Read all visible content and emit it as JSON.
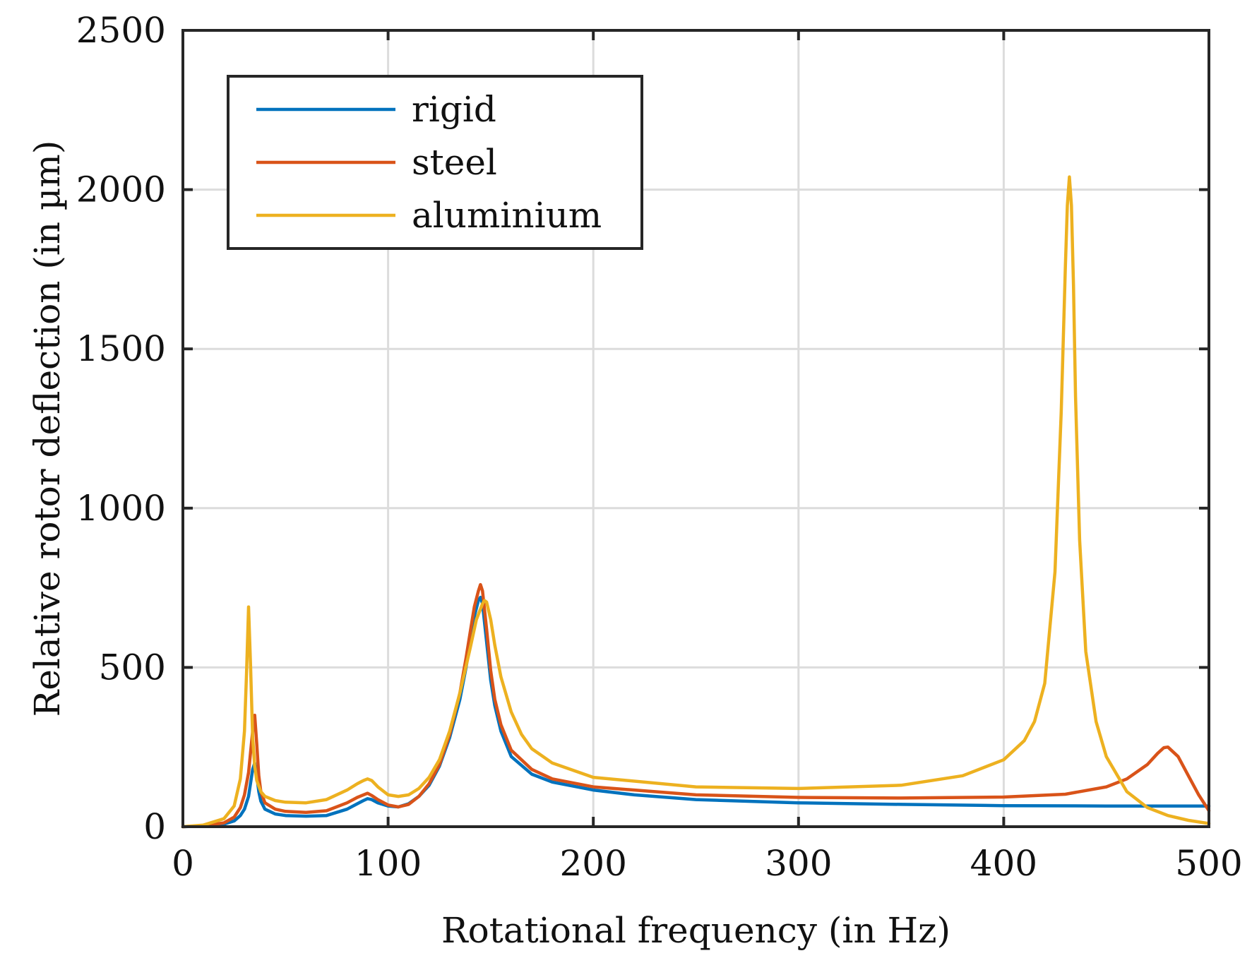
{
  "chart_data": {
    "type": "line",
    "title": "",
    "xlabel": "Rotational frequency (in Hz)",
    "ylabel": "Relative rotor deflection (in µm)",
    "xlim": [
      0,
      500
    ],
    "ylim": [
      0,
      2500
    ],
    "xticks": [
      0,
      100,
      200,
      300,
      400,
      500
    ],
    "yticks": [
      0,
      500,
      1000,
      1500,
      2000,
      2500
    ],
    "xtick_labels": [
      "0",
      "100",
      "200",
      "300",
      "400",
      "500"
    ],
    "ytick_labels": [
      "0",
      "500",
      "1000",
      "1500",
      "2000",
      "2500"
    ],
    "grid": true,
    "legend_position": "top-left",
    "series": [
      {
        "name": "rigid",
        "color": "#0072BD",
        "x": [
          0,
          10,
          20,
          25,
          28,
          30,
          32,
          34,
          35,
          36,
          37,
          38,
          40,
          45,
          50,
          60,
          70,
          80,
          85,
          88,
          90,
          92,
          95,
          100,
          105,
          110,
          115,
          120,
          125,
          130,
          135,
          138,
          140,
          142,
          144,
          145,
          146,
          148,
          150,
          152,
          155,
          160,
          170,
          180,
          200,
          220,
          250,
          300,
          350,
          400,
          450,
          500
        ],
        "y": [
          0,
          2,
          8,
          18,
          35,
          55,
          95,
          180,
          200,
          160,
          110,
          80,
          55,
          40,
          35,
          33,
          35,
          55,
          72,
          82,
          88,
          85,
          75,
          65,
          62,
          72,
          95,
          130,
          190,
          280,
          400,
          500,
          580,
          660,
          710,
          720,
          700,
          580,
          460,
          380,
          300,
          220,
          165,
          140,
          115,
          100,
          85,
          75,
          70,
          66,
          65,
          65
        ]
      },
      {
        "name": "steel",
        "color": "#D95319",
        "x": [
          0,
          10,
          20,
          25,
          28,
          30,
          32,
          34,
          35,
          36,
          37,
          38,
          40,
          45,
          50,
          60,
          70,
          80,
          85,
          88,
          90,
          92,
          95,
          100,
          105,
          110,
          115,
          120,
          125,
          130,
          135,
          138,
          140,
          142,
          144,
          145,
          146,
          148,
          150,
          152,
          155,
          160,
          170,
          180,
          200,
          250,
          300,
          350,
          400,
          430,
          450,
          460,
          470,
          475,
          478,
          480,
          485,
          490,
          495,
          500
        ],
        "y": [
          0,
          3,
          12,
          30,
          60,
          100,
          170,
          300,
          350,
          260,
          160,
          110,
          75,
          55,
          48,
          45,
          50,
          75,
          92,
          100,
          105,
          98,
          85,
          68,
          62,
          70,
          95,
          135,
          195,
          290,
          420,
          530,
          610,
          690,
          740,
          760,
          740,
          620,
          490,
          400,
          320,
          240,
          180,
          150,
          125,
          100,
          92,
          90,
          93,
          102,
          125,
          150,
          195,
          230,
          248,
          250,
          220,
          160,
          100,
          50
        ]
      },
      {
        "name": "aluminium",
        "color": "#EDB120",
        "x": [
          0,
          10,
          20,
          25,
          28,
          30,
          31,
          32,
          33,
          34,
          35,
          36,
          38,
          40,
          45,
          50,
          60,
          70,
          80,
          85,
          88,
          90,
          92,
          95,
          100,
          105,
          110,
          115,
          120,
          125,
          130,
          135,
          140,
          143,
          146,
          147,
          148,
          150,
          152,
          155,
          160,
          165,
          170,
          180,
          200,
          250,
          300,
          350,
          380,
          400,
          410,
          415,
          420,
          425,
          428,
          430,
          431,
          432,
          433,
          434,
          435,
          437,
          440,
          445,
          450,
          460,
          470,
          480,
          490,
          500
        ],
        "y": [
          0,
          5,
          25,
          65,
          150,
          300,
          480,
          690,
          500,
          280,
          190,
          145,
          110,
          95,
          82,
          77,
          75,
          85,
          115,
          135,
          145,
          150,
          145,
          125,
          100,
          95,
          100,
          120,
          155,
          210,
          300,
          420,
          560,
          650,
          700,
          710,
          705,
          650,
          570,
          470,
          360,
          290,
          245,
          200,
          155,
          125,
          120,
          130,
          160,
          210,
          270,
          330,
          450,
          800,
          1300,
          1750,
          1950,
          2040,
          1950,
          1700,
          1350,
          900,
          550,
          330,
          220,
          110,
          60,
          35,
          20,
          10
        ]
      }
    ]
  }
}
